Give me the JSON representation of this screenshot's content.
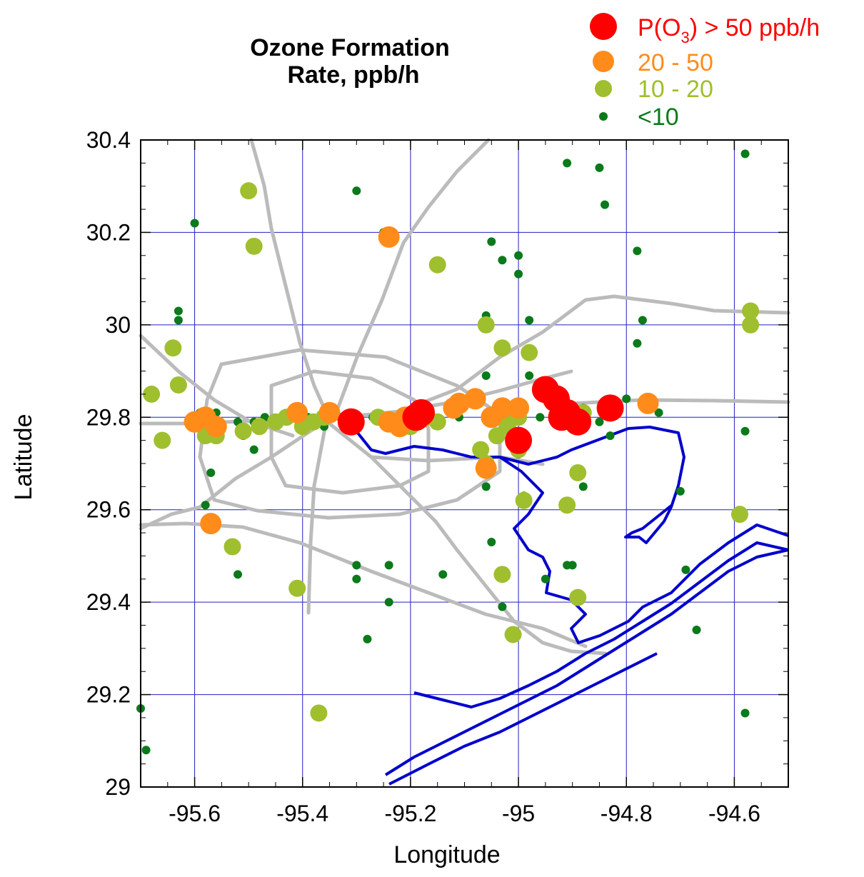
{
  "chart_data": {
    "type": "scatter",
    "title": [
      "Ozone Formation",
      "Rate, ppb/h"
    ],
    "xlabel": "Longitude",
    "ylabel": "Latitude",
    "xlim": [
      -95.7,
      -94.5
    ],
    "ylim": [
      29.0,
      30.4
    ],
    "x_ticks": [
      -95.6,
      -95.4,
      -95.2,
      -95.0,
      -94.8,
      -94.6
    ],
    "x_tick_labels": [
      "-95.6",
      "-95.4",
      "-95.2",
      "-95",
      "-94.8",
      "-94.6"
    ],
    "y_ticks": [
      29.0,
      29.2,
      29.4,
      29.6,
      29.8,
      30.0,
      30.2,
      30.4
    ],
    "y_tick_labels": [
      "29",
      "29.2",
      "29.4",
      "29.6",
      "29.8",
      "30",
      "30.2",
      "30.4"
    ],
    "grid": true,
    "legend_position": "top-right",
    "legend": [
      {
        "label_main": "P(O",
        "label_sub": "3",
        "label_rest": ") > 50 ppb/h",
        "color": "#ff0000"
      },
      {
        "label": "20 - 50",
        "color": "#ff8c1a"
      },
      {
        "label": "10 - 20",
        "color": "#9fbf2e"
      },
      {
        "label": "<10",
        "color": "#0a7a1a"
      }
    ],
    "colors": {
      "grid": "#2020c0",
      "roads": "#bbbbbb",
      "coast": "#0000cc"
    },
    "series": [
      {
        "name": "P(O3) > 50 ppb/h",
        "points": [
          [
            -95.31,
            29.79
          ],
          [
            -95.19,
            29.8
          ],
          [
            -95.18,
            29.81
          ],
          [
            -95.0,
            29.75
          ],
          [
            -94.95,
            29.86
          ],
          [
            -94.93,
            29.84
          ],
          [
            -94.92,
            29.8
          ],
          [
            -94.91,
            29.81
          ],
          [
            -94.89,
            29.79
          ],
          [
            -94.83,
            29.82
          ]
        ]
      },
      {
        "name": "20 - 50",
        "points": [
          [
            -95.6,
            29.79
          ],
          [
            -95.58,
            29.8
          ],
          [
            -95.56,
            29.78
          ],
          [
            -95.41,
            29.81
          ],
          [
            -95.35,
            29.81
          ],
          [
            -95.24,
            29.79
          ],
          [
            -95.22,
            29.78
          ],
          [
            -95.21,
            29.8
          ],
          [
            -95.18,
            29.8
          ],
          [
            -95.12,
            29.82
          ],
          [
            -95.11,
            29.83
          ],
          [
            -95.08,
            29.84
          ],
          [
            -95.05,
            29.8
          ],
          [
            -95.03,
            29.82
          ],
          [
            -95.0,
            29.82
          ],
          [
            -95.06,
            29.69
          ],
          [
            -94.76,
            29.83
          ],
          [
            -95.57,
            29.57
          ],
          [
            -95.24,
            30.19
          ]
        ]
      },
      {
        "name": "10 - 20",
        "points": [
          [
            -95.64,
            29.95
          ],
          [
            -95.66,
            29.75
          ],
          [
            -95.68,
            29.85
          ],
          [
            -95.63,
            29.87
          ],
          [
            -95.58,
            29.76
          ],
          [
            -95.56,
            29.76
          ],
          [
            -95.51,
            29.77
          ],
          [
            -95.48,
            29.78
          ],
          [
            -95.45,
            29.79
          ],
          [
            -95.43,
            29.8
          ],
          [
            -95.4,
            29.78
          ],
          [
            -95.38,
            29.79
          ],
          [
            -95.36,
            29.8
          ],
          [
            -95.26,
            29.8
          ],
          [
            -95.2,
            29.78
          ],
          [
            -95.17,
            29.8
          ],
          [
            -95.15,
            29.79
          ],
          [
            -95.07,
            29.73
          ],
          [
            -95.06,
            29.7
          ],
          [
            -95.04,
            29.76
          ],
          [
            -95.03,
            29.8
          ],
          [
            -95.02,
            29.78
          ],
          [
            -95.0,
            29.8
          ],
          [
            -95.0,
            29.73
          ],
          [
            -94.99,
            29.62
          ],
          [
            -94.88,
            29.81
          ],
          [
            -94.91,
            29.61
          ],
          [
            -94.89,
            29.68
          ],
          [
            -95.03,
            29.95
          ],
          [
            -94.98,
            29.94
          ],
          [
            -95.06,
            30.0
          ],
          [
            -95.5,
            30.29
          ],
          [
            -95.49,
            30.17
          ],
          [
            -95.15,
            30.13
          ],
          [
            -95.53,
            29.52
          ],
          [
            -95.41,
            29.43
          ],
          [
            -95.37,
            29.16
          ],
          [
            -95.03,
            29.46
          ],
          [
            -95.01,
            29.33
          ],
          [
            -94.89,
            29.41
          ],
          [
            -94.59,
            29.59
          ],
          [
            -94.57,
            30.03
          ],
          [
            -94.57,
            30.0
          ]
        ]
      },
      {
        "name": "<10",
        "points": [
          [
            -95.59,
            29.81
          ],
          [
            -95.56,
            29.81
          ],
          [
            -95.52,
            29.79
          ],
          [
            -95.49,
            29.79
          ],
          [
            -95.47,
            29.8
          ],
          [
            -95.39,
            29.8
          ],
          [
            -95.36,
            29.78
          ],
          [
            -95.33,
            29.8
          ],
          [
            -95.3,
            29.79
          ],
          [
            -95.27,
            29.8
          ],
          [
            -95.22,
            29.78
          ],
          [
            -95.11,
            29.8
          ],
          [
            -95.04,
            29.81
          ],
          [
            -95.0,
            29.8
          ],
          [
            -94.98,
            29.89
          ],
          [
            -94.96,
            29.8
          ],
          [
            -94.88,
            29.82
          ],
          [
            -94.85,
            29.79
          ],
          [
            -94.83,
            29.76
          ],
          [
            -94.8,
            29.84
          ],
          [
            -94.74,
            29.81
          ],
          [
            -95.0,
            29.72
          ],
          [
            -95.06,
            29.65
          ],
          [
            -94.88,
            29.65
          ],
          [
            -94.7,
            29.64
          ],
          [
            -95.51,
            29.76
          ],
          [
            -95.49,
            29.73
          ],
          [
            -95.57,
            29.68
          ],
          [
            -95.58,
            29.61
          ],
          [
            -95.58,
            29.76
          ],
          [
            -95.52,
            29.46
          ],
          [
            -95.3,
            29.48
          ],
          [
            -95.3,
            29.45
          ],
          [
            -95.24,
            29.48
          ],
          [
            -95.14,
            29.46
          ],
          [
            -95.05,
            29.53
          ],
          [
            -94.95,
            29.45
          ],
          [
            -94.91,
            29.48
          ],
          [
            -94.9,
            29.48
          ],
          [
            -95.03,
            29.39
          ],
          [
            -95.24,
            29.4
          ],
          [
            -95.28,
            29.32
          ],
          [
            -94.69,
            29.47
          ],
          [
            -94.67,
            29.34
          ],
          [
            -94.58,
            29.16
          ],
          [
            -94.58,
            29.77
          ],
          [
            -94.58,
            30.37
          ],
          [
            -95.7,
            29.17
          ],
          [
            -95.69,
            29.08
          ],
          [
            -95.63,
            30.03
          ],
          [
            -95.63,
            30.01
          ],
          [
            -95.6,
            30.22
          ],
          [
            -95.3,
            30.29
          ],
          [
            -95.25,
            30.2
          ],
          [
            -95.05,
            30.18
          ],
          [
            -95.03,
            30.14
          ],
          [
            -95.0,
            30.15
          ],
          [
            -95.0,
            30.11
          ],
          [
            -94.98,
            30.01
          ],
          [
            -95.06,
            30.02
          ],
          [
            -95.06,
            29.89
          ],
          [
            -94.91,
            30.35
          ],
          [
            -94.85,
            30.34
          ],
          [
            -94.84,
            30.26
          ],
          [
            -94.78,
            30.16
          ],
          [
            -94.78,
            29.96
          ],
          [
            -94.77,
            30.01
          ],
          [
            -94.99,
            29.63
          ]
        ]
      }
    ]
  }
}
